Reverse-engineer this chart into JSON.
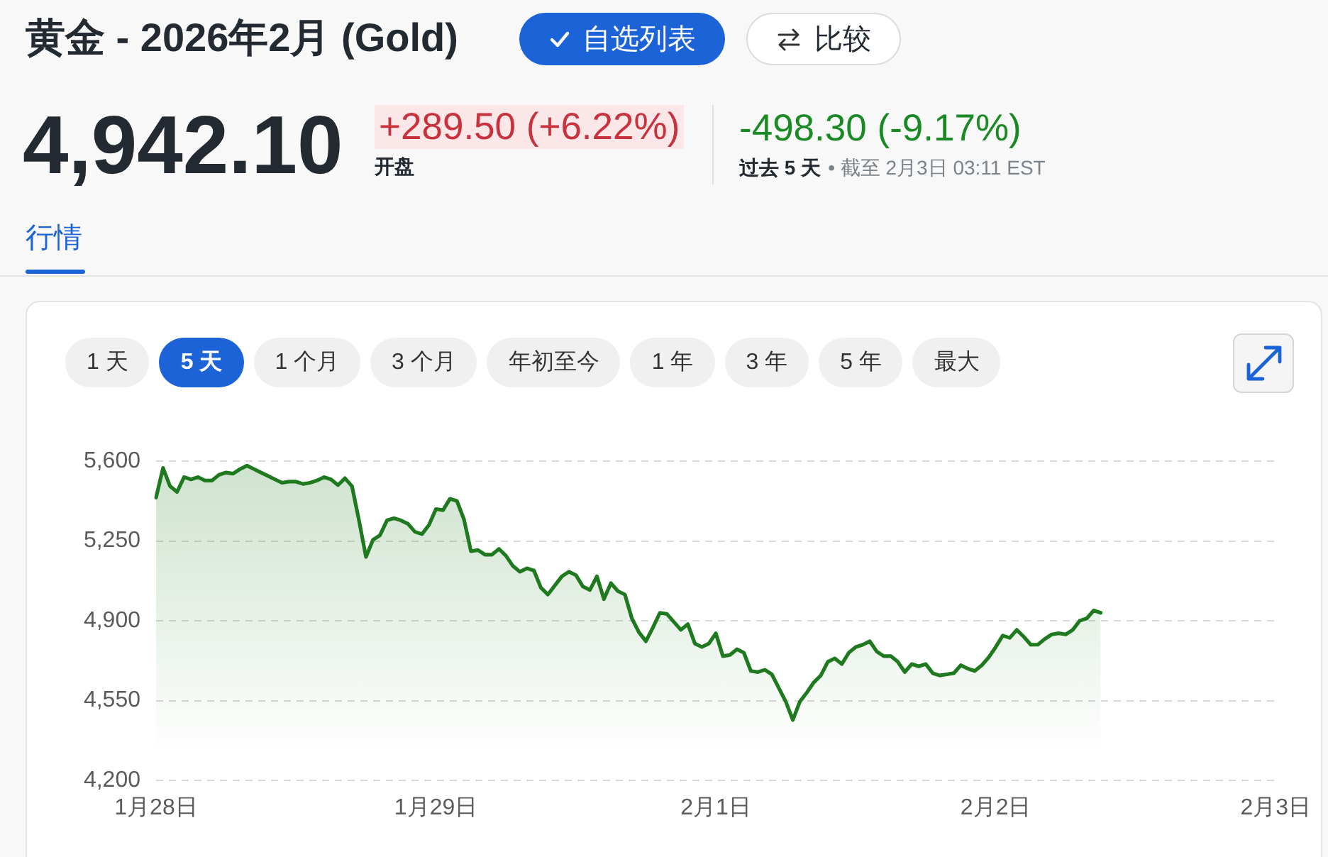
{
  "chart_data": {
    "type": "area",
    "title": "黄金 - 2026年2月 (Gold)",
    "annotations": [
      "自选列表",
      "比较",
      "4,942.10",
      "+289.50 (+6.22%)",
      "开盘",
      "-498.30 (-9.17%)",
      "过去 5 天",
      "• 截至 2月3日 03:11 EST",
      "行情",
      "1 天",
      "5 天",
      "1 个月",
      "3 个月",
      "年初至今",
      "1 年",
      "3 年",
      "5 年",
      "最大"
    ],
    "categories": [
      "1月28日",
      null,
      null,
      null,
      null,
      null,
      null,
      null,
      null,
      null,
      null,
      null,
      null,
      null,
      null,
      null,
      null,
      null,
      null,
      null,
      null,
      null,
      null,
      null,
      null,
      null,
      null,
      null,
      null,
      null,
      null,
      null,
      null,
      null,
      null,
      null,
      null,
      null,
      null,
      null,
      "1月29日",
      null,
      null,
      null,
      null,
      null,
      null,
      null,
      null,
      null,
      null,
      null,
      null,
      null,
      null,
      null,
      null,
      null,
      null,
      null,
      null,
      null,
      null,
      null,
      null,
      null,
      null,
      null,
      null,
      null,
      null,
      null,
      null,
      null,
      null,
      null,
      null,
      null,
      null,
      null,
      "2月1日",
      null,
      null,
      null,
      null,
      null,
      null,
      null,
      null,
      null,
      null,
      null,
      null,
      null,
      null,
      null,
      null,
      null,
      null,
      null,
      null,
      null,
      null,
      null,
      null,
      null,
      null,
      null,
      null,
      null,
      null,
      null,
      null,
      null,
      null,
      null,
      null,
      null,
      null,
      null,
      "2月2日",
      null,
      null,
      null,
      null,
      null,
      null,
      null,
      null,
      null,
      null,
      null,
      null,
      null,
      null,
      null,
      null,
      null,
      null,
      null,
      null,
      null,
      null,
      null,
      null,
      null,
      null,
      null,
      null,
      null,
      null,
      null,
      null,
      null,
      null,
      null,
      null,
      null,
      null,
      null,
      "2月3日"
    ],
    "series": [
      {
        "color": "#1f7a1f",
        "values": [
          5440,
          5570,
          5490,
          5465,
          5530,
          5520,
          5530,
          5515,
          5515,
          5540,
          5550,
          5545,
          5565,
          5580,
          5565,
          5550,
          5535,
          5520,
          5505,
          5510,
          5510,
          5500,
          5505,
          5515,
          5530,
          5520,
          5495,
          5525,
          5490,
          5340,
          5180,
          5255,
          5275,
          5340,
          5350,
          5340,
          5325,
          5290,
          5280,
          5320,
          5390,
          5385,
          5435,
          5425,
          5345,
          5205,
          5210,
          5190,
          5190,
          5215,
          5185,
          5140,
          5115,
          5130,
          5120,
          5045,
          5015,
          5055,
          5095,
          5115,
          5100,
          5050,
          5035,
          5095,
          4995,
          5065,
          5030,
          5015,
          4910,
          4850,
          4810,
          4870,
          4935,
          4930,
          4895,
          4860,
          4885,
          4800,
          4785,
          4800,
          4845,
          4745,
          4750,
          4775,
          4760,
          4680,
          4675,
          4685,
          4665,
          4605,
          4545,
          4465,
          4545,
          4585,
          4630,
          4660,
          4720,
          4735,
          4710,
          4760,
          4785,
          4795,
          4810,
          4765,
          4745,
          4745,
          4720,
          4675,
          4710,
          4700,
          4710,
          4670,
          4660,
          4665,
          4670,
          4705,
          4690,
          4680,
          4705,
          4740,
          4785,
          4835,
          4825,
          4860,
          4830,
          4795,
          4795,
          4820,
          4840,
          4845,
          4840,
          4860,
          4900,
          4910,
          4945,
          4935,
          null,
          null,
          null,
          null,
          null,
          null,
          null,
          null,
          null,
          null,
          null,
          null,
          null,
          null,
          null,
          null,
          null,
          null,
          null,
          null,
          null,
          null,
          null,
          null,
          null
        ]
      }
    ],
    "ylim": [
      4200,
      5600
    ],
    "yticks": [
      {
        "value": 4200,
        "label": "4,200"
      },
      {
        "value": 4550,
        "label": "4,550"
      },
      {
        "value": 4900,
        "label": "4,900"
      },
      {
        "value": 5250,
        "label": "5,250"
      },
      {
        "value": 5600,
        "label": "5,600"
      }
    ],
    "grid": "y",
    "marker": "none"
  }
}
